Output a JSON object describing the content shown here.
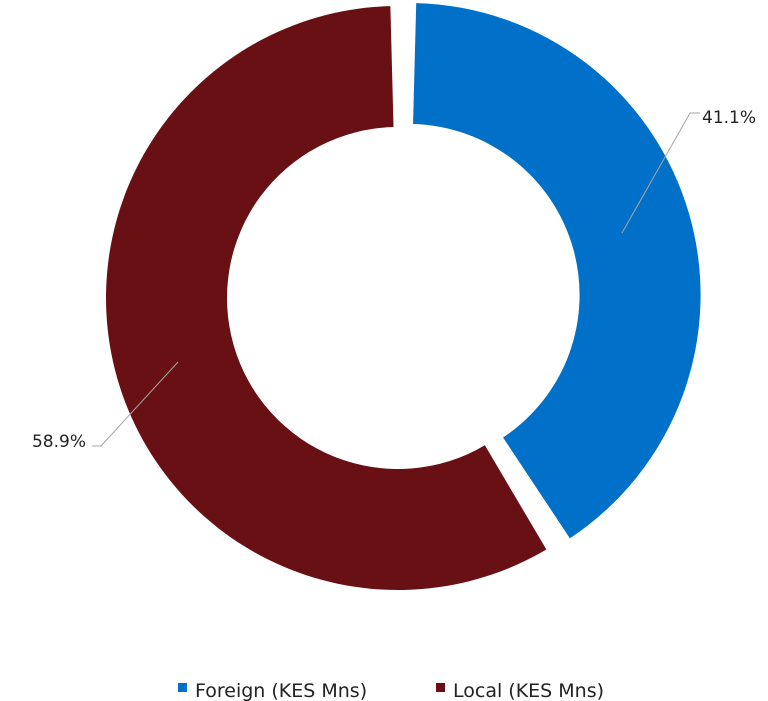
{
  "chart_data": {
    "type": "pie",
    "variant": "donut",
    "title": "",
    "categories": [
      "Foreign (KES Mns)",
      "Local (KES Mns)"
    ],
    "values": [
      41.1,
      58.9
    ],
    "value_labels": [
      "41.1%",
      "58.9%"
    ],
    "colors": [
      "#0070C8",
      "#681014"
    ],
    "legend": {
      "position": "bottom",
      "items": [
        "Foreign (KES Mns)",
        "Local (KES Mns)"
      ]
    },
    "exploded_slice": "Foreign (KES Mns)"
  }
}
